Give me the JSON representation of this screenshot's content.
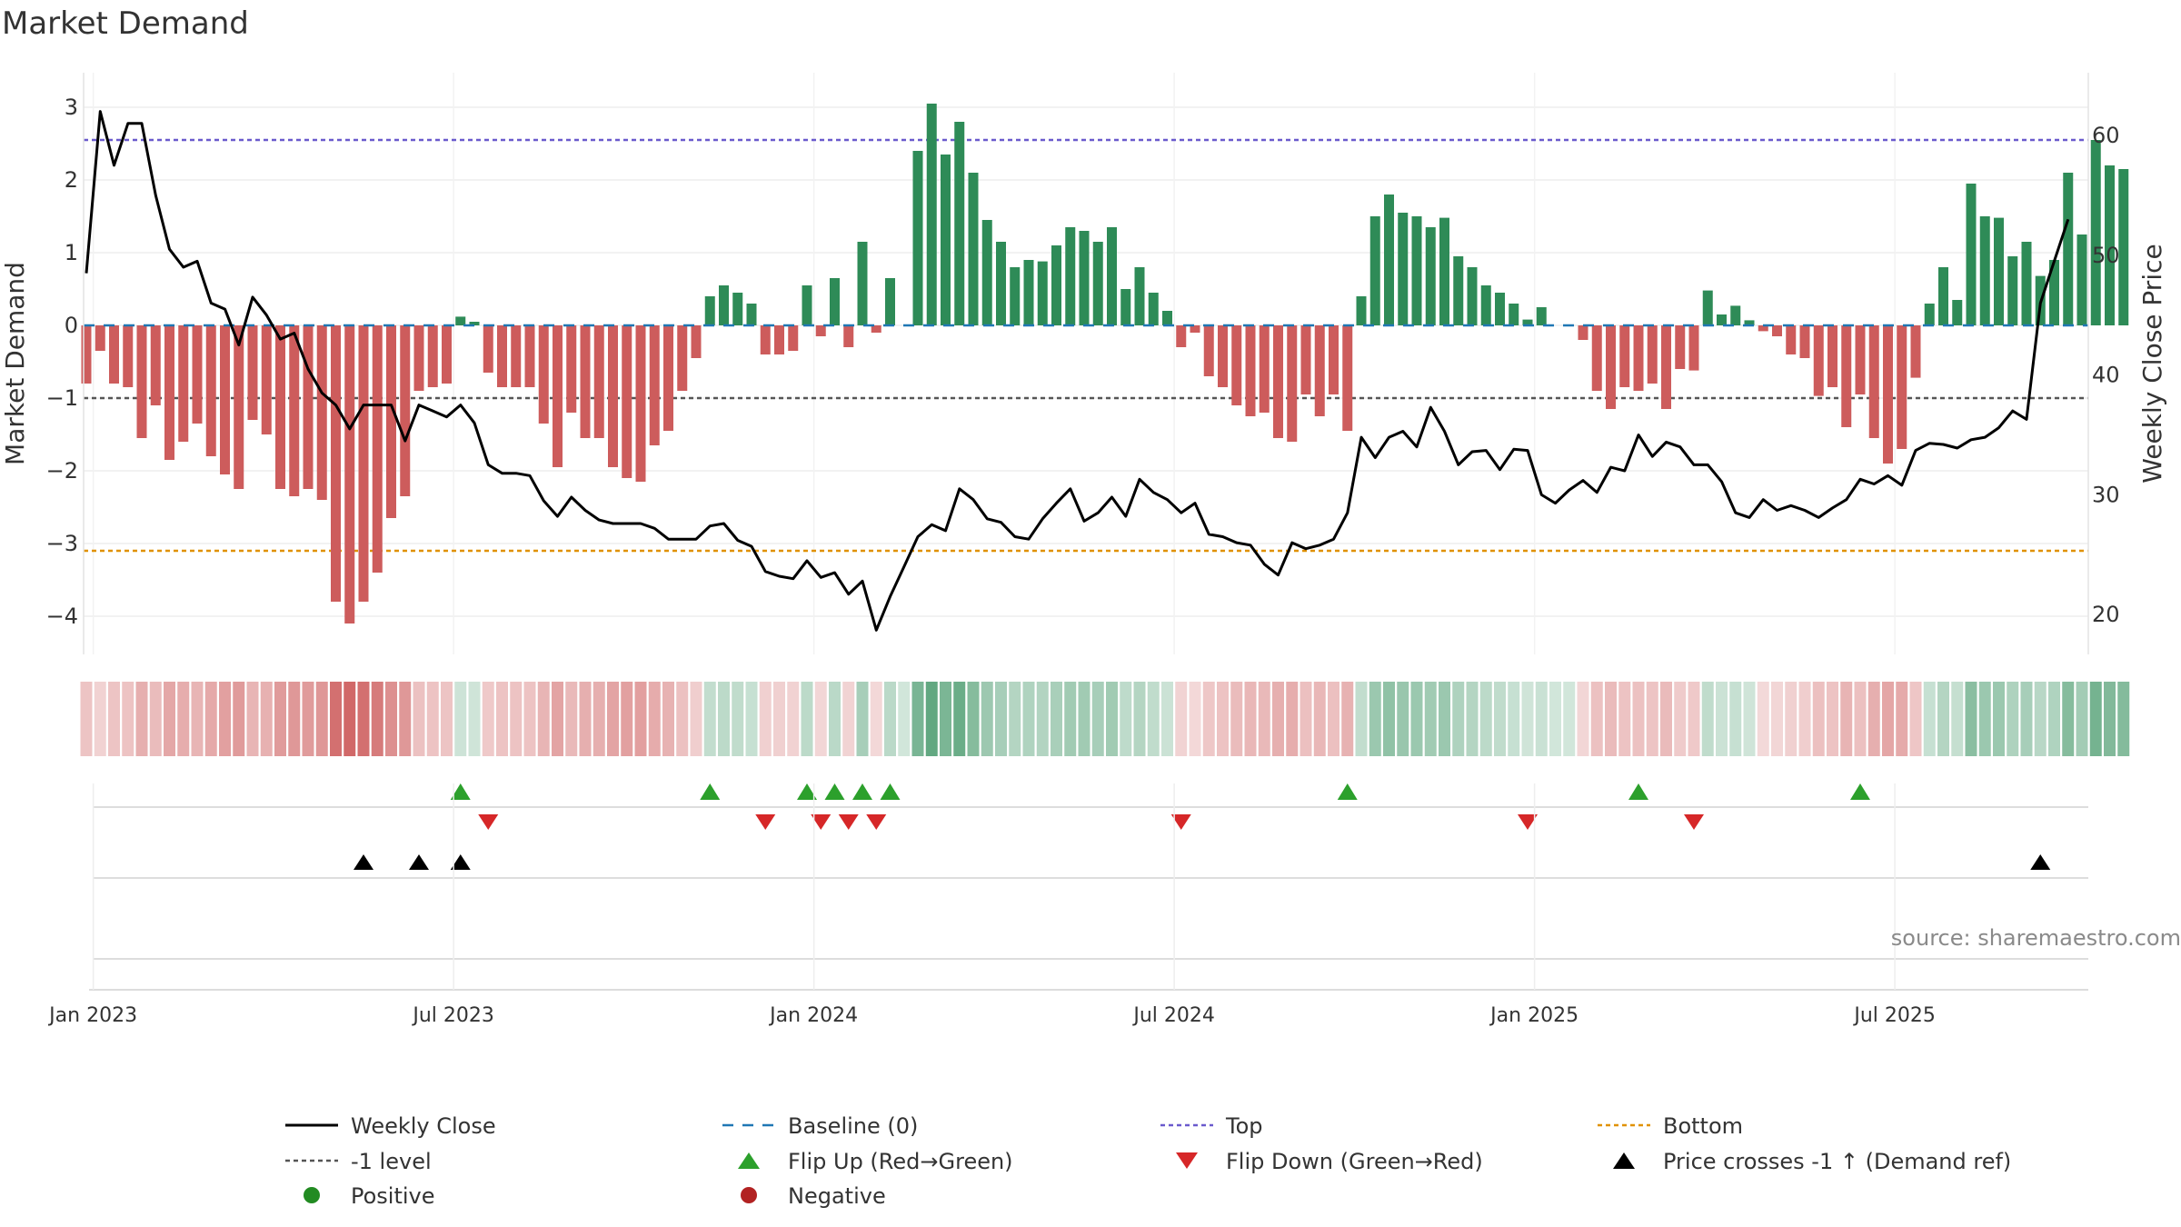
{
  "title": "Market Demand",
  "source": "source: sharemaestro.com",
  "colors": {
    "positive": "#2e8b57",
    "negative": "#cd5c5c",
    "price": "#000000",
    "top": "#6a5acd",
    "bottom": "#e09100",
    "minus1": "#555555",
    "baseline": "#1f77b4",
    "flip_up": "#2ca02c",
    "flip_down": "#d62728",
    "cross": "#000000"
  },
  "chart_data": {
    "type": "bar",
    "title": "Market Demand",
    "ylabel_left": "Market Demand",
    "ylabel_right": "Weekly Close Price",
    "ylim_left": [
      -4.5,
      3.3
    ],
    "ylim_right": [
      15,
      65
    ],
    "yticks_left": [
      "3",
      "2",
      "1",
      "0",
      "−1",
      "−2",
      "−3",
      "−4"
    ],
    "yticks_left_values": [
      3,
      2,
      1,
      0,
      -1,
      -2,
      -3,
      -4
    ],
    "yticks_right": [
      "60",
      "50",
      "40",
      "30",
      "20"
    ],
    "yticks_right_values": [
      60,
      50,
      40,
      30,
      20
    ],
    "x_tick_labels": [
      "Jan 2023",
      "Jul 2023",
      "Jan 2024",
      "Jul 2024",
      "Jan 2025",
      "Jul 2025"
    ],
    "x_tick_weeks": [
      0.5,
      26.5,
      52.5,
      78.5,
      104.5,
      130.5
    ],
    "top_level": 2.55,
    "bottom_level": -3.1,
    "minus1_level": -1,
    "demand": [
      -0.8,
      -0.35,
      -0.8,
      -0.85,
      -1.55,
      -1.1,
      -1.85,
      -1.6,
      -1.35,
      -1.8,
      -2.05,
      -2.25,
      -1.3,
      -1.5,
      -2.25,
      -2.35,
      -2.25,
      -2.4,
      -3.8,
      -4.1,
      -3.8,
      -3.4,
      -2.65,
      -2.35,
      -0.9,
      -0.85,
      -0.8,
      0.12,
      0.05,
      -0.65,
      -0.85,
      -0.85,
      -0.85,
      -1.35,
      -1.95,
      -1.2,
      -1.55,
      -1.55,
      -1.95,
      -2.1,
      -2.15,
      -1.65,
      -1.45,
      -0.9,
      -0.45,
      0.4,
      0.55,
      0.45,
      0.3,
      -0.4,
      -0.4,
      -0.35,
      0.55,
      -0.15,
      0.65,
      -0.3,
      1.15,
      -0.1,
      0.65,
      0,
      2.4,
      3.05,
      2.35,
      2.8,
      2.1,
      1.45,
      1.15,
      0.8,
      0.9,
      0.88,
      1.1,
      1.35,
      1.3,
      1.15,
      1.35,
      0.5,
      0.8,
      0.45,
      0.2,
      -0.3,
      -0.1,
      -0.7,
      -0.85,
      -1.1,
      -1.25,
      -1.2,
      -1.55,
      -1.6,
      -0.95,
      -1.25,
      -0.95,
      -1.45,
      0.4,
      1.5,
      1.8,
      1.55,
      1.5,
      1.35,
      1.48,
      0.95,
      0.8,
      0.55,
      0.45,
      0.3,
      0.08,
      0.25,
      0,
      0,
      -0.2,
      -0.9,
      -1.15,
      -0.85,
      -0.9,
      -0.8,
      -1.15,
      -0.6,
      -0.62,
      0.48,
      0.15,
      0.27,
      0.07,
      -0.08,
      -0.15,
      -0.4,
      -0.45,
      -0.97,
      -0.85,
      -1.4,
      -0.95,
      -1.55,
      -1.9,
      -1.7,
      -0.72,
      0.3,
      0.8,
      0.35,
      1.95,
      1.5,
      1.48,
      0.95,
      1.15,
      0.68,
      0.9,
      2.1,
      1.25,
      2.55,
      2.2,
      2.15
    ],
    "price": [
      48.5,
      62,
      57.5,
      61,
      61,
      55,
      50.5,
      49,
      49.5,
      46,
      45.5,
      42.5,
      46.5,
      45,
      43,
      43.5,
      40.5,
      38.5,
      37.5,
      35.5,
      37.5,
      37.5,
      37.5,
      34.5,
      37.5,
      37,
      36.5,
      37.5,
      36,
      32.5,
      31.8,
      31.8,
      31.6,
      29.5,
      28.2,
      29.8,
      28.7,
      27.9,
      27.6,
      27.6,
      27.6,
      27.2,
      26.3,
      26.3,
      26.3,
      27.4,
      27.6,
      26.2,
      25.7,
      23.6,
      23.2,
      23,
      24.5,
      23.1,
      23.5,
      21.7,
      22.8,
      18.7,
      21.5,
      24,
      26.5,
      27.5,
      27,
      30.5,
      29.6,
      28,
      27.7,
      26.5,
      26.3,
      28,
      29.3,
      30.5,
      27.8,
      28.5,
      29.8,
      28.2,
      31.3,
      30.2,
      29.6,
      28.5,
      29.3,
      26.7,
      26.5,
      26,
      25.8,
      24.2,
      23.3,
      26,
      25.5,
      25.8,
      26.3,
      28.5,
      34.8,
      33.1,
      34.8,
      35.3,
      34,
      37.3,
      35.3,
      32.5,
      33.6,
      33.7,
      32.1,
      33.8,
      33.7,
      30,
      29.3,
      30.4,
      31.2,
      30.2,
      32.3,
      32,
      35,
      33.2,
      34.4,
      34,
      32.5,
      32.5,
      31.1,
      28.5,
      28.1,
      29.6,
      28.7,
      29.1,
      28.7,
      28.1,
      28.9,
      29.6,
      31.3,
      30.9,
      31.6,
      30.8,
      33.7,
      34.3,
      34.2,
      33.9,
      34.6,
      34.8,
      35.6,
      37,
      36.3,
      46,
      49.5,
      53
    ]
  },
  "flips": {
    "up_weeks": [
      27,
      45,
      52,
      54,
      56,
      58,
      91,
      112,
      128
    ],
    "down_weeks": [
      29,
      49,
      53,
      55,
      57,
      79,
      104,
      116
    ],
    "cross_weeks": [
      20,
      24,
      27,
      141
    ]
  },
  "legend": {
    "weekly_close": "Weekly Close",
    "baseline": "Baseline (0)",
    "top": "Top",
    "bottom": "Bottom",
    "minus1": "-1 level",
    "flip_up": "Flip Up (Red→Green)",
    "flip_down": "Flip Down (Green→Red)",
    "cross": "Price crosses -1 ↑ (Demand ref)",
    "positive": "Positive",
    "negative": "Negative"
  }
}
